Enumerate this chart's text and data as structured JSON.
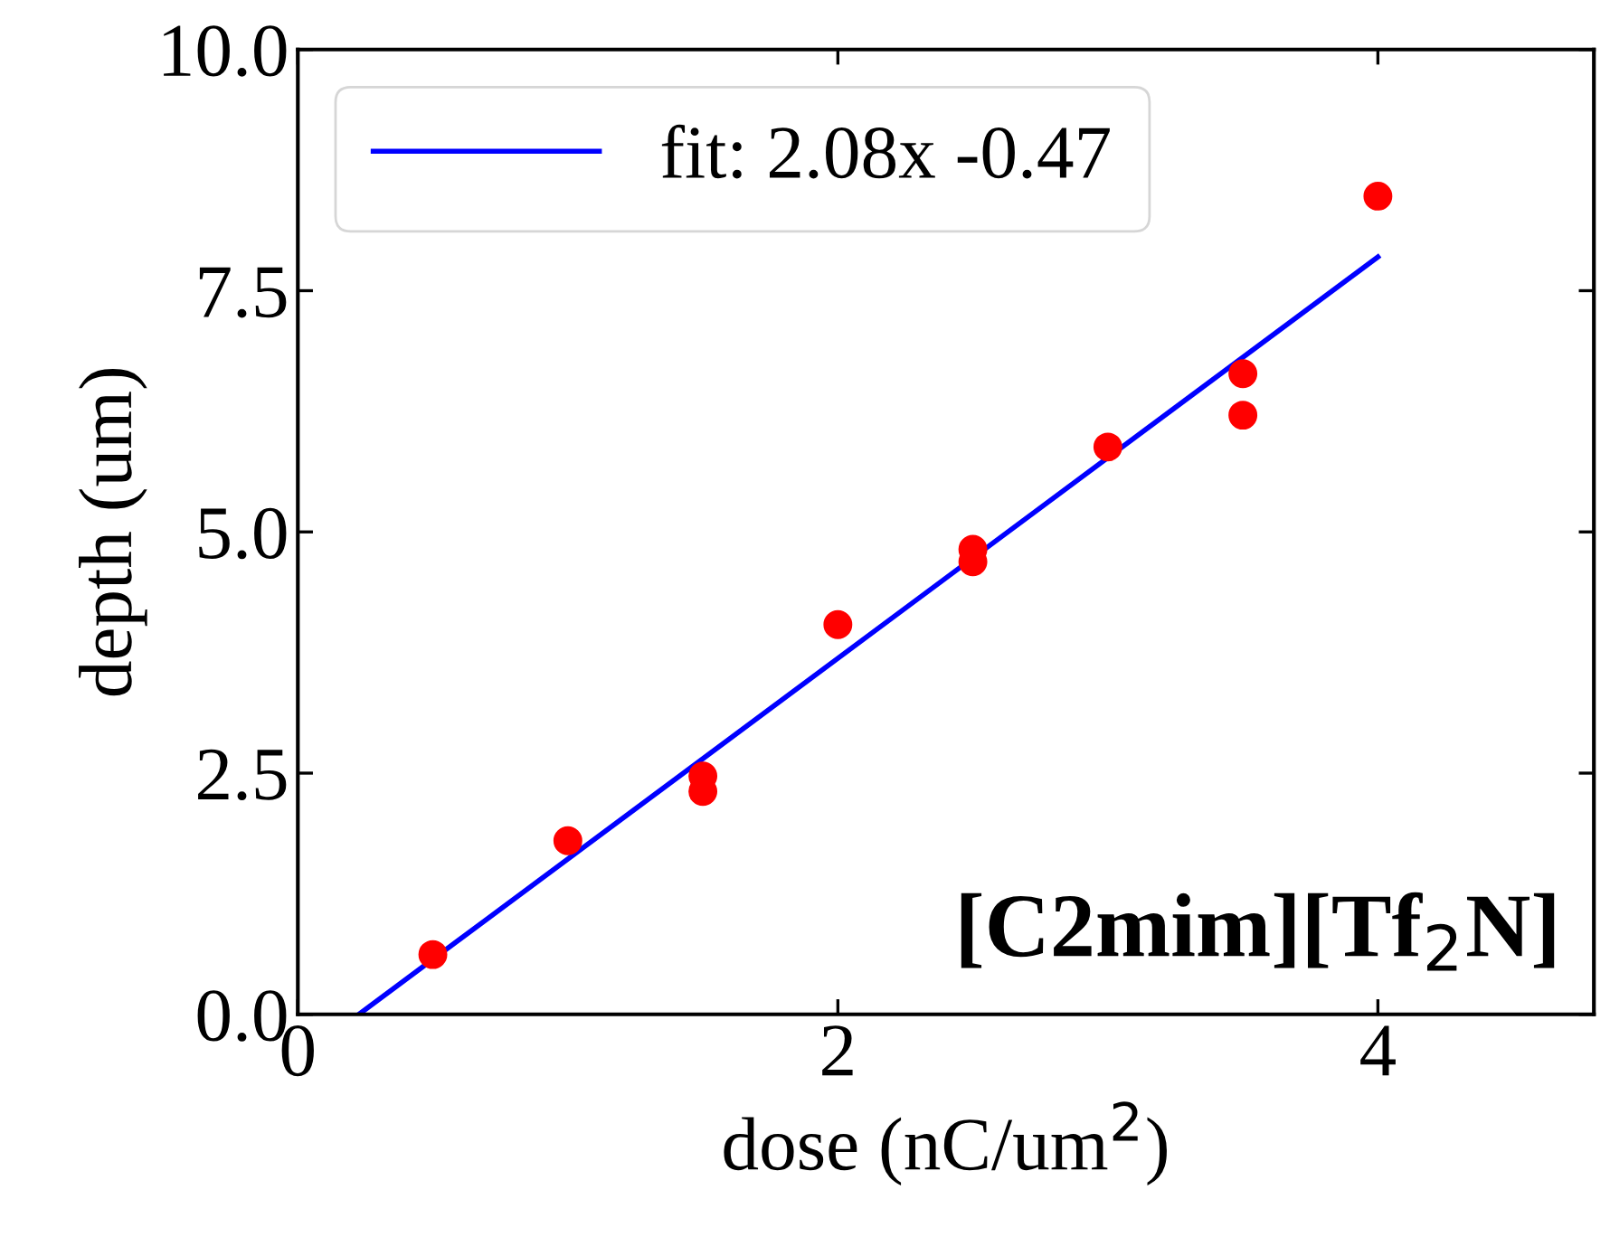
{
  "chart_data": {
    "type": "scatter",
    "xlabel": "dose (nC/um$^{2}$)",
    "ylabel": "depth (um)",
    "xlim": [
      0,
      4.8
    ],
    "ylim": [
      0,
      10
    ],
    "xticks": [
      0,
      2,
      4
    ],
    "yticks": [
      {
        "value": 0,
        "label": "0.0"
      },
      {
        "value": 2.5,
        "label": "2.5"
      },
      {
        "value": 5,
        "label": "5.0"
      },
      {
        "value": 7.5,
        "label": "7.5"
      },
      {
        "value": 10,
        "label": "10.0"
      }
    ],
    "grid": false,
    "legend": "top left",
    "series": [
      {
        "marker": "circle",
        "color": "#ff0000",
        "x": [
          0.5,
          1,
          1.5,
          1.5,
          2,
          2.5,
          2.5,
          3,
          3.5,
          3.5,
          4
        ],
        "values": [
          0.62,
          1.8,
          2.47,
          2.31,
          4.04,
          4.82,
          4.69,
          5.88,
          6.64,
          6.21,
          8.48
        ]
      },
      {
        "type": "line",
        "name": "fit: 2.08x -0.47",
        "color": "#0000ff",
        "line_style": "solid",
        "marker": "none",
        "x": [
          0.226,
          4
        ],
        "values": [
          0,
          7.85
        ]
      }
    ],
    "annotations": [
      {
        "text": "[C2mim][Tf$_{2}$N]"
      }
    ]
  }
}
